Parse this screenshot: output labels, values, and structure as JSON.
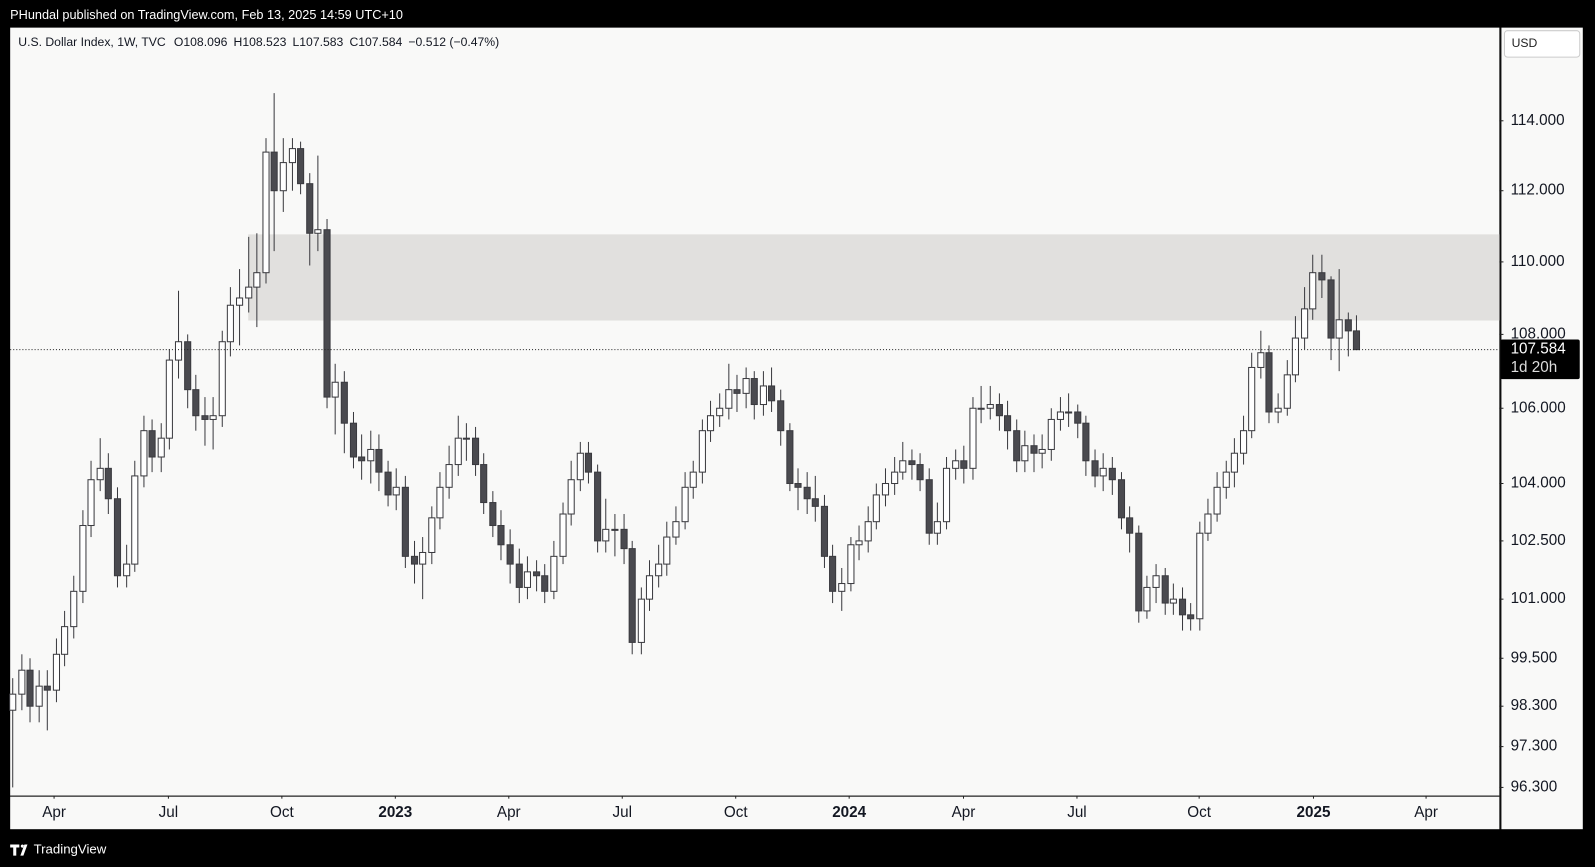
{
  "header": "PHundal published on TradingView.com, Feb 13, 2025 14:59 UTC+10",
  "footer": "TradingView",
  "chart_data": {
    "type": "candlestick",
    "title": "U.S. Dollar Index, 1W, TVC",
    "legend_values": [
      "O108.096",
      "H108.523",
      "L107.583",
      "C107.584",
      "−0.512 (−0.47%)"
    ],
    "currency": "USD",
    "up_color": "#ffffff",
    "down_color": "#4a4a4f",
    "outline_color": "#3a3a3f",
    "log_scale": true,
    "ylim": [
      96.1,
      116.72
    ],
    "yticks": [
      {
        "value": 96.3,
        "label": "96.300"
      },
      {
        "value": 97.3,
        "label": "97.300"
      },
      {
        "value": 98.3,
        "label": "98.300"
      },
      {
        "value": 99.5,
        "label": "99.500"
      },
      {
        "value": 101,
        "label": "101.000"
      },
      {
        "value": 102.5,
        "label": "102.500"
      },
      {
        "value": 104,
        "label": "104.000"
      },
      {
        "value": 106,
        "label": "106.000"
      },
      {
        "value": 108,
        "label": "108.000"
      },
      {
        "value": 110,
        "label": "110.000"
      },
      {
        "value": 112,
        "label": "112.000"
      },
      {
        "value": 114,
        "label": "114.000"
      }
    ],
    "xlim": [
      -0.23,
      170.4
    ],
    "xticks": [
      {
        "value": 4.8,
        "label": "Apr"
      },
      {
        "value": 17.9,
        "label": "Jul"
      },
      {
        "value": 30.9,
        "label": "Oct"
      },
      {
        "value": 43.9,
        "label": "2023"
      },
      {
        "value": 56.9,
        "label": "Apr"
      },
      {
        "value": 69.9,
        "label": "Jul"
      },
      {
        "value": 82.9,
        "label": "Oct"
      },
      {
        "value": 95.9,
        "label": "2024"
      },
      {
        "value": 109.0,
        "label": "Apr"
      },
      {
        "value": 122.0,
        "label": "Jul"
      },
      {
        "value": 136.0,
        "label": "Oct"
      },
      {
        "value": 149.1,
        "label": "2025"
      },
      {
        "value": 162.0,
        "label": "Apr"
      }
    ],
    "zone": [
      108.38,
      110.77
    ],
    "zone_color": "#e1e0de",
    "last_price": 107.584,
    "countdown": "1d 20h",
    "open": [
      98.2,
      98.6,
      99.2,
      98.3,
      98.8,
      98.7,
      99.6,
      100.3,
      101.2,
      102.9,
      104.1,
      104.4,
      103.6,
      101.6,
      101.9,
      104.2,
      105.4,
      104.7,
      105.2,
      107.3,
      107.8,
      106.5,
      105.8,
      105.7,
      105.8,
      107.8,
      108.8,
      109.0,
      109.3,
      109.7,
      113.1,
      112.0,
      112.8,
      113.2,
      112.2,
      110.8,
      110.9,
      106.3,
      106.7,
      105.6,
      104.7,
      104.6,
      104.9,
      104.3,
      103.7,
      103.9,
      102.1,
      101.9,
      102.2,
      103.1,
      103.9,
      104.5,
      105.2,
      105.2,
      104.5,
      103.5,
      102.9,
      102.4,
      101.9,
      101.3,
      101.7,
      101.6,
      101.2,
      102.1,
      103.2,
      104.1,
      104.8,
      104.3,
      102.5,
      102.8,
      102.8,
      102.3,
      99.9,
      101.0,
      101.6,
      101.9,
      102.6,
      103.0,
      103.9,
      104.3,
      105.4,
      105.8,
      106.0,
      106.5,
      106.4,
      106.8,
      106.1,
      106.6,
      106.2,
      105.4,
      104.0,
      103.9,
      103.6,
      103.4,
      102.1,
      101.2,
      101.4,
      102.4,
      102.5,
      103.0,
      103.7,
      104.0,
      104.3,
      104.6,
      104.5,
      104.1,
      102.7,
      103.0,
      104.4,
      104.6,
      104.4,
      106.0,
      106.0,
      106.1,
      105.8,
      105.4,
      104.6,
      105.0,
      104.8,
      104.9,
      105.7,
      105.9,
      105.9,
      105.6,
      104.6,
      104.2,
      104.4,
      104.1,
      103.1,
      102.7,
      100.7,
      101.3,
      101.6,
      100.9,
      101.0,
      100.6,
      100.5,
      102.7,
      103.2,
      103.9,
      104.3,
      104.8,
      105.4,
      107.1,
      107.5,
      105.9,
      106.0,
      106.9,
      107.9,
      108.7,
      109.7,
      109.5,
      107.9,
      108.4,
      108.096
    ],
    "high": [
      99.0,
      99.6,
      99.5,
      99.2,
      99.2,
      100.0,
      100.7,
      101.6,
      103.3,
      104.6,
      105.2,
      104.8,
      103.9,
      102.4,
      104.6,
      105.8,
      105.7,
      105.6,
      107.6,
      109.2,
      108.0,
      106.9,
      106.3,
      106.3,
      108.1,
      109.3,
      109.8,
      110.7,
      110.8,
      113.5,
      114.8,
      113.5,
      113.5,
      113.4,
      112.5,
      113.0,
      111.2,
      107.2,
      107.0,
      105.9,
      105.3,
      105.4,
      105.3,
      104.6,
      104.4,
      104.2,
      102.5,
      102.6,
      103.4,
      104.3,
      105.0,
      105.8,
      105.6,
      105.5,
      104.8,
      103.8,
      103.3,
      102.8,
      102.3,
      102.1,
      102.0,
      101.9,
      102.5,
      103.5,
      104.6,
      105.1,
      105.1,
      104.5,
      103.6,
      103.2,
      103.2,
      102.5,
      101.3,
      102.0,
      102.4,
      103.0,
      103.4,
      104.3,
      104.6,
      105.7,
      106.2,
      106.4,
      107.2,
      106.9,
      107.1,
      107.0,
      107.0,
      107.1,
      106.5,
      105.6,
      104.4,
      104.3,
      104.2,
      103.7,
      102.4,
      101.8,
      102.6,
      102.9,
      103.4,
      104.0,
      104.4,
      104.7,
      105.1,
      104.9,
      104.8,
      104.4,
      103.5,
      104.7,
      104.9,
      105.0,
      106.3,
      106.6,
      106.6,
      106.4,
      106.2,
      105.7,
      105.4,
      105.3,
      105.3,
      106.0,
      106.3,
      106.4,
      106.1,
      105.8,
      104.9,
      104.8,
      104.7,
      104.3,
      103.4,
      102.9,
      101.6,
      101.9,
      101.8,
      101.4,
      101.3,
      100.9,
      103.0,
      103.6,
      104.3,
      104.6,
      105.2,
      105.8,
      107.5,
      108.1,
      107.7,
      106.4,
      107.3,
      108.5,
      109.3,
      110.2,
      110.2,
      109.6,
      109.8,
      108.6,
      108.523
    ],
    "low": [
      96.3,
      98.2,
      97.9,
      97.9,
      97.7,
      98.4,
      99.3,
      100.0,
      100.9,
      102.6,
      103.8,
      103.2,
      101.3,
      101.3,
      101.7,
      103.9,
      104.3,
      104.3,
      104.9,
      106.8,
      106.0,
      105.4,
      105.0,
      104.9,
      105.5,
      107.4,
      107.7,
      108.6,
      108.2,
      109.4,
      110.3,
      111.4,
      112.0,
      111.9,
      109.9,
      110.3,
      106.0,
      105.3,
      104.8,
      104.4,
      104.1,
      104.0,
      103.8,
      103.4,
      103.3,
      101.8,
      101.4,
      101.0,
      101.9,
      102.8,
      103.6,
      104.2,
      104.6,
      104.2,
      103.2,
      102.6,
      102.0,
      101.4,
      100.9,
      101.0,
      101.2,
      100.9,
      101.0,
      101.9,
      102.9,
      103.8,
      104.0,
      102.2,
      102.2,
      102.1,
      101.9,
      99.6,
      99.6,
      100.7,
      101.3,
      101.6,
      102.4,
      102.8,
      103.6,
      104.0,
      105.1,
      105.5,
      105.7,
      105.9,
      106.0,
      105.7,
      105.8,
      105.9,
      105.0,
      103.8,
      103.3,
      103.2,
      103.0,
      101.8,
      100.9,
      100.7,
      101.2,
      102.0,
      102.2,
      102.8,
      103.4,
      103.7,
      104.1,
      104.1,
      103.8,
      102.4,
      102.4,
      102.8,
      104.1,
      104.0,
      104.1,
      105.6,
      105.7,
      105.4,
      104.9,
      104.3,
      104.3,
      104.3,
      104.4,
      104.6,
      105.4,
      105.5,
      105.2,
      104.2,
      103.9,
      103.8,
      103.7,
      102.8,
      102.2,
      100.4,
      100.5,
      100.9,
      100.6,
      100.6,
      100.2,
      100.2,
      100.2,
      102.5,
      103.0,
      103.6,
      103.9,
      104.5,
      105.2,
      106.8,
      105.6,
      105.6,
      105.8,
      106.7,
      107.6,
      108.4,
      109.0,
      107.3,
      107.0,
      107.4,
      107.583
    ],
    "close": [
      98.6,
      99.2,
      98.3,
      98.8,
      98.7,
      99.6,
      100.3,
      101.2,
      102.9,
      104.1,
      104.4,
      103.6,
      101.6,
      101.9,
      104.2,
      105.4,
      104.7,
      105.2,
      107.3,
      107.8,
      106.5,
      105.8,
      105.7,
      105.8,
      107.8,
      108.8,
      109.0,
      109.3,
      109.7,
      113.1,
      112.0,
      112.8,
      113.2,
      112.2,
      110.8,
      110.9,
      106.3,
      106.7,
      105.6,
      104.7,
      104.6,
      104.9,
      104.3,
      103.7,
      103.9,
      102.1,
      101.9,
      102.2,
      103.1,
      103.9,
      104.5,
      105.2,
      105.2,
      104.5,
      103.5,
      102.9,
      102.4,
      101.9,
      101.3,
      101.7,
      101.6,
      101.2,
      102.1,
      103.2,
      104.1,
      104.8,
      104.3,
      102.5,
      102.8,
      102.8,
      102.3,
      99.9,
      101.0,
      101.6,
      101.9,
      102.6,
      103.0,
      103.9,
      104.3,
      105.4,
      105.8,
      106.0,
      106.5,
      106.4,
      106.8,
      106.1,
      106.6,
      106.2,
      105.4,
      104.0,
      103.9,
      103.6,
      103.4,
      102.1,
      101.2,
      101.4,
      102.4,
      102.5,
      103.0,
      103.7,
      104.0,
      104.3,
      104.6,
      104.5,
      104.1,
      102.7,
      103.0,
      104.4,
      104.6,
      104.4,
      106.0,
      106.0,
      106.1,
      105.8,
      105.4,
      104.6,
      105.0,
      104.8,
      104.9,
      105.7,
      105.9,
      105.9,
      105.6,
      104.6,
      104.2,
      104.4,
      104.1,
      103.1,
      102.7,
      100.7,
      101.3,
      101.6,
      100.9,
      101.0,
      100.6,
      100.5,
      102.7,
      103.2,
      103.9,
      104.3,
      104.8,
      105.4,
      107.1,
      107.5,
      105.9,
      106.0,
      106.9,
      107.9,
      108.7,
      109.7,
      109.5,
      107.9,
      108.4,
      108.096,
      107.584
    ]
  }
}
